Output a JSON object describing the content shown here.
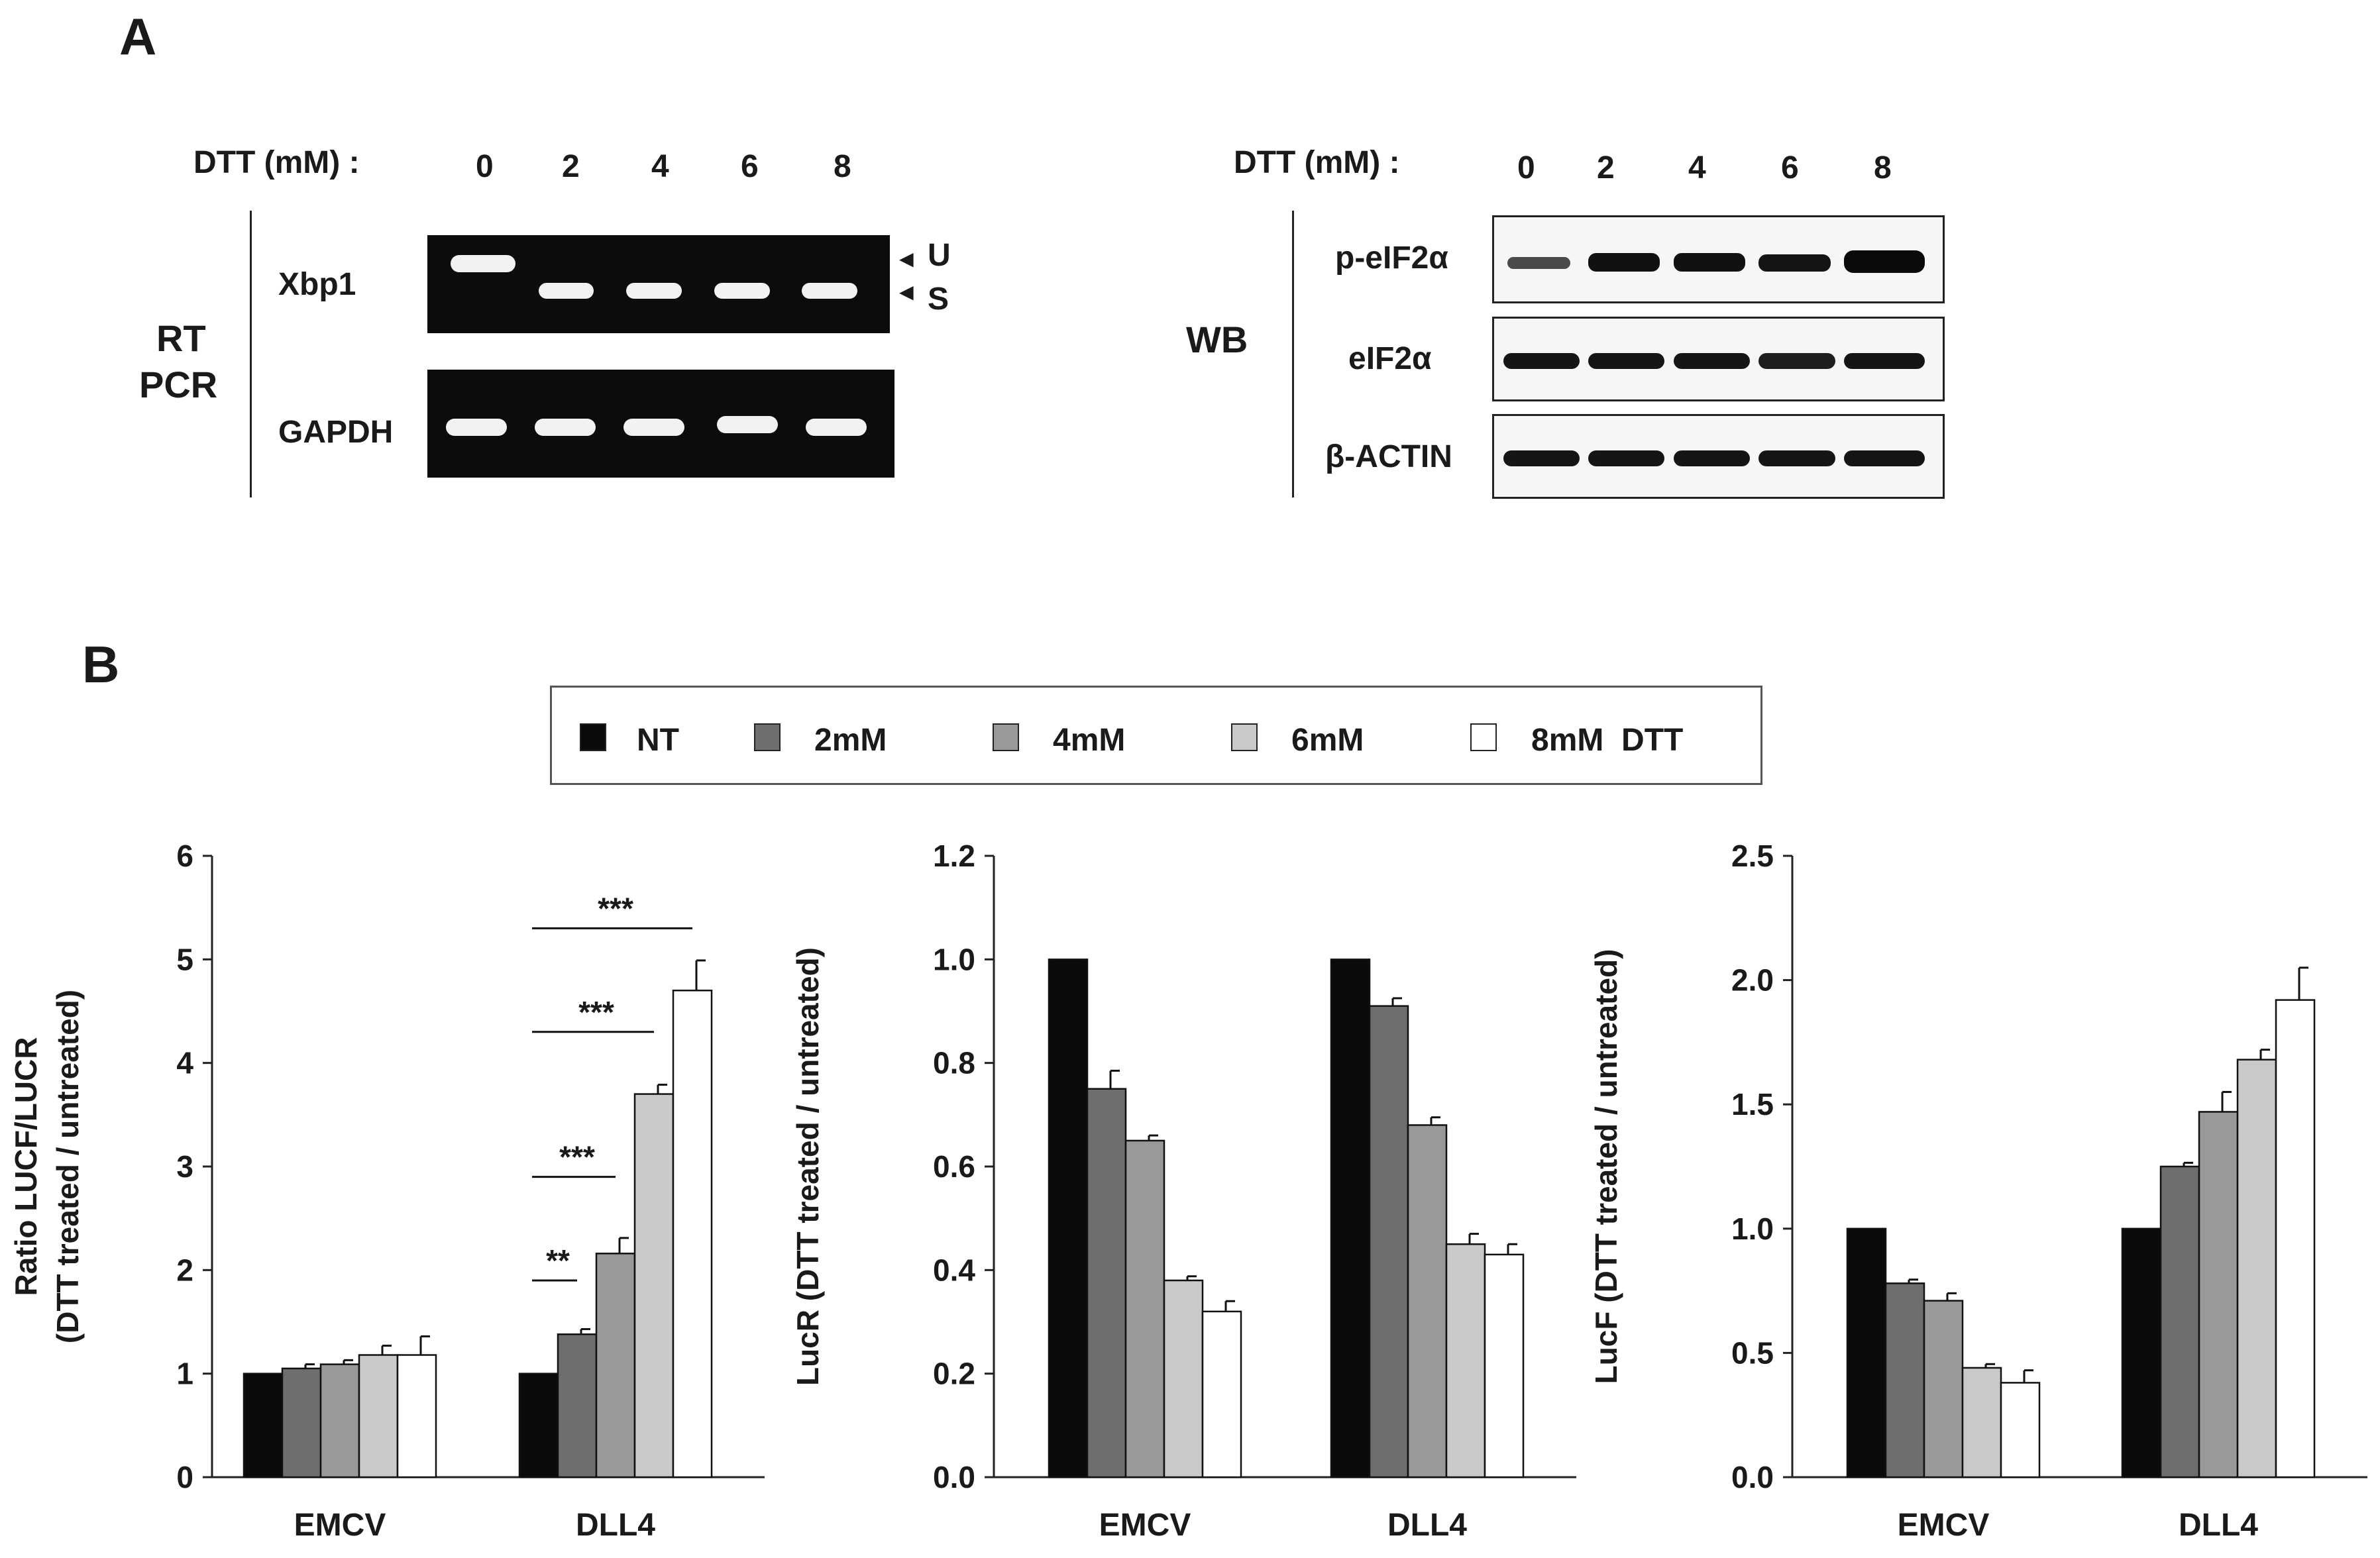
{
  "panel_a": {
    "letter": "A",
    "rtpcr": {
      "dtt_label": "DTT (mM) :",
      "lanes": [
        "0",
        "2",
        "4",
        "6",
        "8"
      ],
      "side_label_1": "RT",
      "side_label_2": "PCR",
      "row_labels": [
        "Xbp1",
        "GAPDH"
      ],
      "marker_u": "U",
      "marker_s": "S"
    },
    "wb": {
      "dtt_label": "DTT (mM) :",
      "lanes": [
        "0",
        "2",
        "4",
        "6",
        "8"
      ],
      "side_label": "WB",
      "row_labels": [
        "p-eIF2α",
        "eIF2α",
        "β-ACTIN"
      ]
    }
  },
  "panel_b": {
    "letter": "B",
    "legend": [
      "NT",
      "2mM",
      "4mM",
      "6mM",
      "8mM  DTT"
    ],
    "colors": [
      "#0a0a0a",
      "#6e6e6e",
      "#999999",
      "#c9c9c9",
      "#ffffff"
    ]
  },
  "chart_data": [
    {
      "type": "bar",
      "categories": [
        "EMCV",
        "DLL4"
      ],
      "series": [
        {
          "name": "NT",
          "values": [
            1.0,
            1.0
          ],
          "errors": [
            0,
            0
          ]
        },
        {
          "name": "2mM",
          "values": [
            1.05,
            1.38
          ],
          "errors": [
            0.04,
            0.05
          ]
        },
        {
          "name": "4mM",
          "values": [
            1.09,
            2.16
          ],
          "errors": [
            0.04,
            0.15
          ]
        },
        {
          "name": "6mM",
          "values": [
            1.18,
            3.7
          ],
          "errors": [
            0.09,
            0.09
          ]
        },
        {
          "name": "8mM  DTT",
          "values": [
            1.18,
            4.7
          ],
          "errors": [
            0.18,
            0.29
          ]
        }
      ],
      "ylabel_line1": "Ratio LUCF/LUCR",
      "ylabel_line2": "(DTT treated / untreated)",
      "ylim": [
        0,
        6
      ],
      "yticks": [
        "0",
        "1",
        "2",
        "3",
        "4",
        "5",
        "6"
      ],
      "significance": [
        "**",
        "***",
        "***",
        "***"
      ]
    },
    {
      "type": "bar",
      "categories": [
        "EMCV",
        "DLL4"
      ],
      "series": [
        {
          "name": "NT",
          "values": [
            1.0,
            1.0
          ],
          "errors": [
            0,
            0
          ]
        },
        {
          "name": "2mM",
          "values": [
            0.75,
            0.91
          ],
          "errors": [
            0.035,
            0.015
          ]
        },
        {
          "name": "4mM",
          "values": [
            0.65,
            0.68
          ],
          "errors": [
            0.01,
            0.015
          ]
        },
        {
          "name": "6mM",
          "values": [
            0.38,
            0.45
          ],
          "errors": [
            0.008,
            0.02
          ]
        },
        {
          "name": "8mM  DTT",
          "values": [
            0.32,
            0.43
          ],
          "errors": [
            0.02,
            0.02
          ]
        }
      ],
      "ylabel": "LucR (DTT treated / untreated)",
      "ylim": [
        0,
        1.2
      ],
      "yticks": [
        "0.0",
        "0.2",
        "0.4",
        "0.6",
        "0.8",
        "1.0",
        "1.2"
      ]
    },
    {
      "type": "bar",
      "categories": [
        "EMCV",
        "DLL4"
      ],
      "series": [
        {
          "name": "NT",
          "values": [
            1.0,
            1.0
          ],
          "errors": [
            0,
            0
          ]
        },
        {
          "name": "2mM",
          "values": [
            0.78,
            1.25
          ],
          "errors": [
            0.015,
            0.015
          ]
        },
        {
          "name": "4mM",
          "values": [
            0.71,
            1.47
          ],
          "errors": [
            0.03,
            0.08
          ]
        },
        {
          "name": "6mM",
          "values": [
            0.44,
            1.68
          ],
          "errors": [
            0.015,
            0.04
          ]
        },
        {
          "name": "8mM  DTT",
          "values": [
            0.38,
            1.92
          ],
          "errors": [
            0.05,
            0.13
          ]
        }
      ],
      "ylabel": "LucF (DTT treated / untreated)",
      "ylim": [
        0,
        2.5
      ],
      "yticks": [
        "0.0",
        "0.5",
        "1.0",
        "1.5",
        "2.0",
        "2.5"
      ]
    }
  ]
}
